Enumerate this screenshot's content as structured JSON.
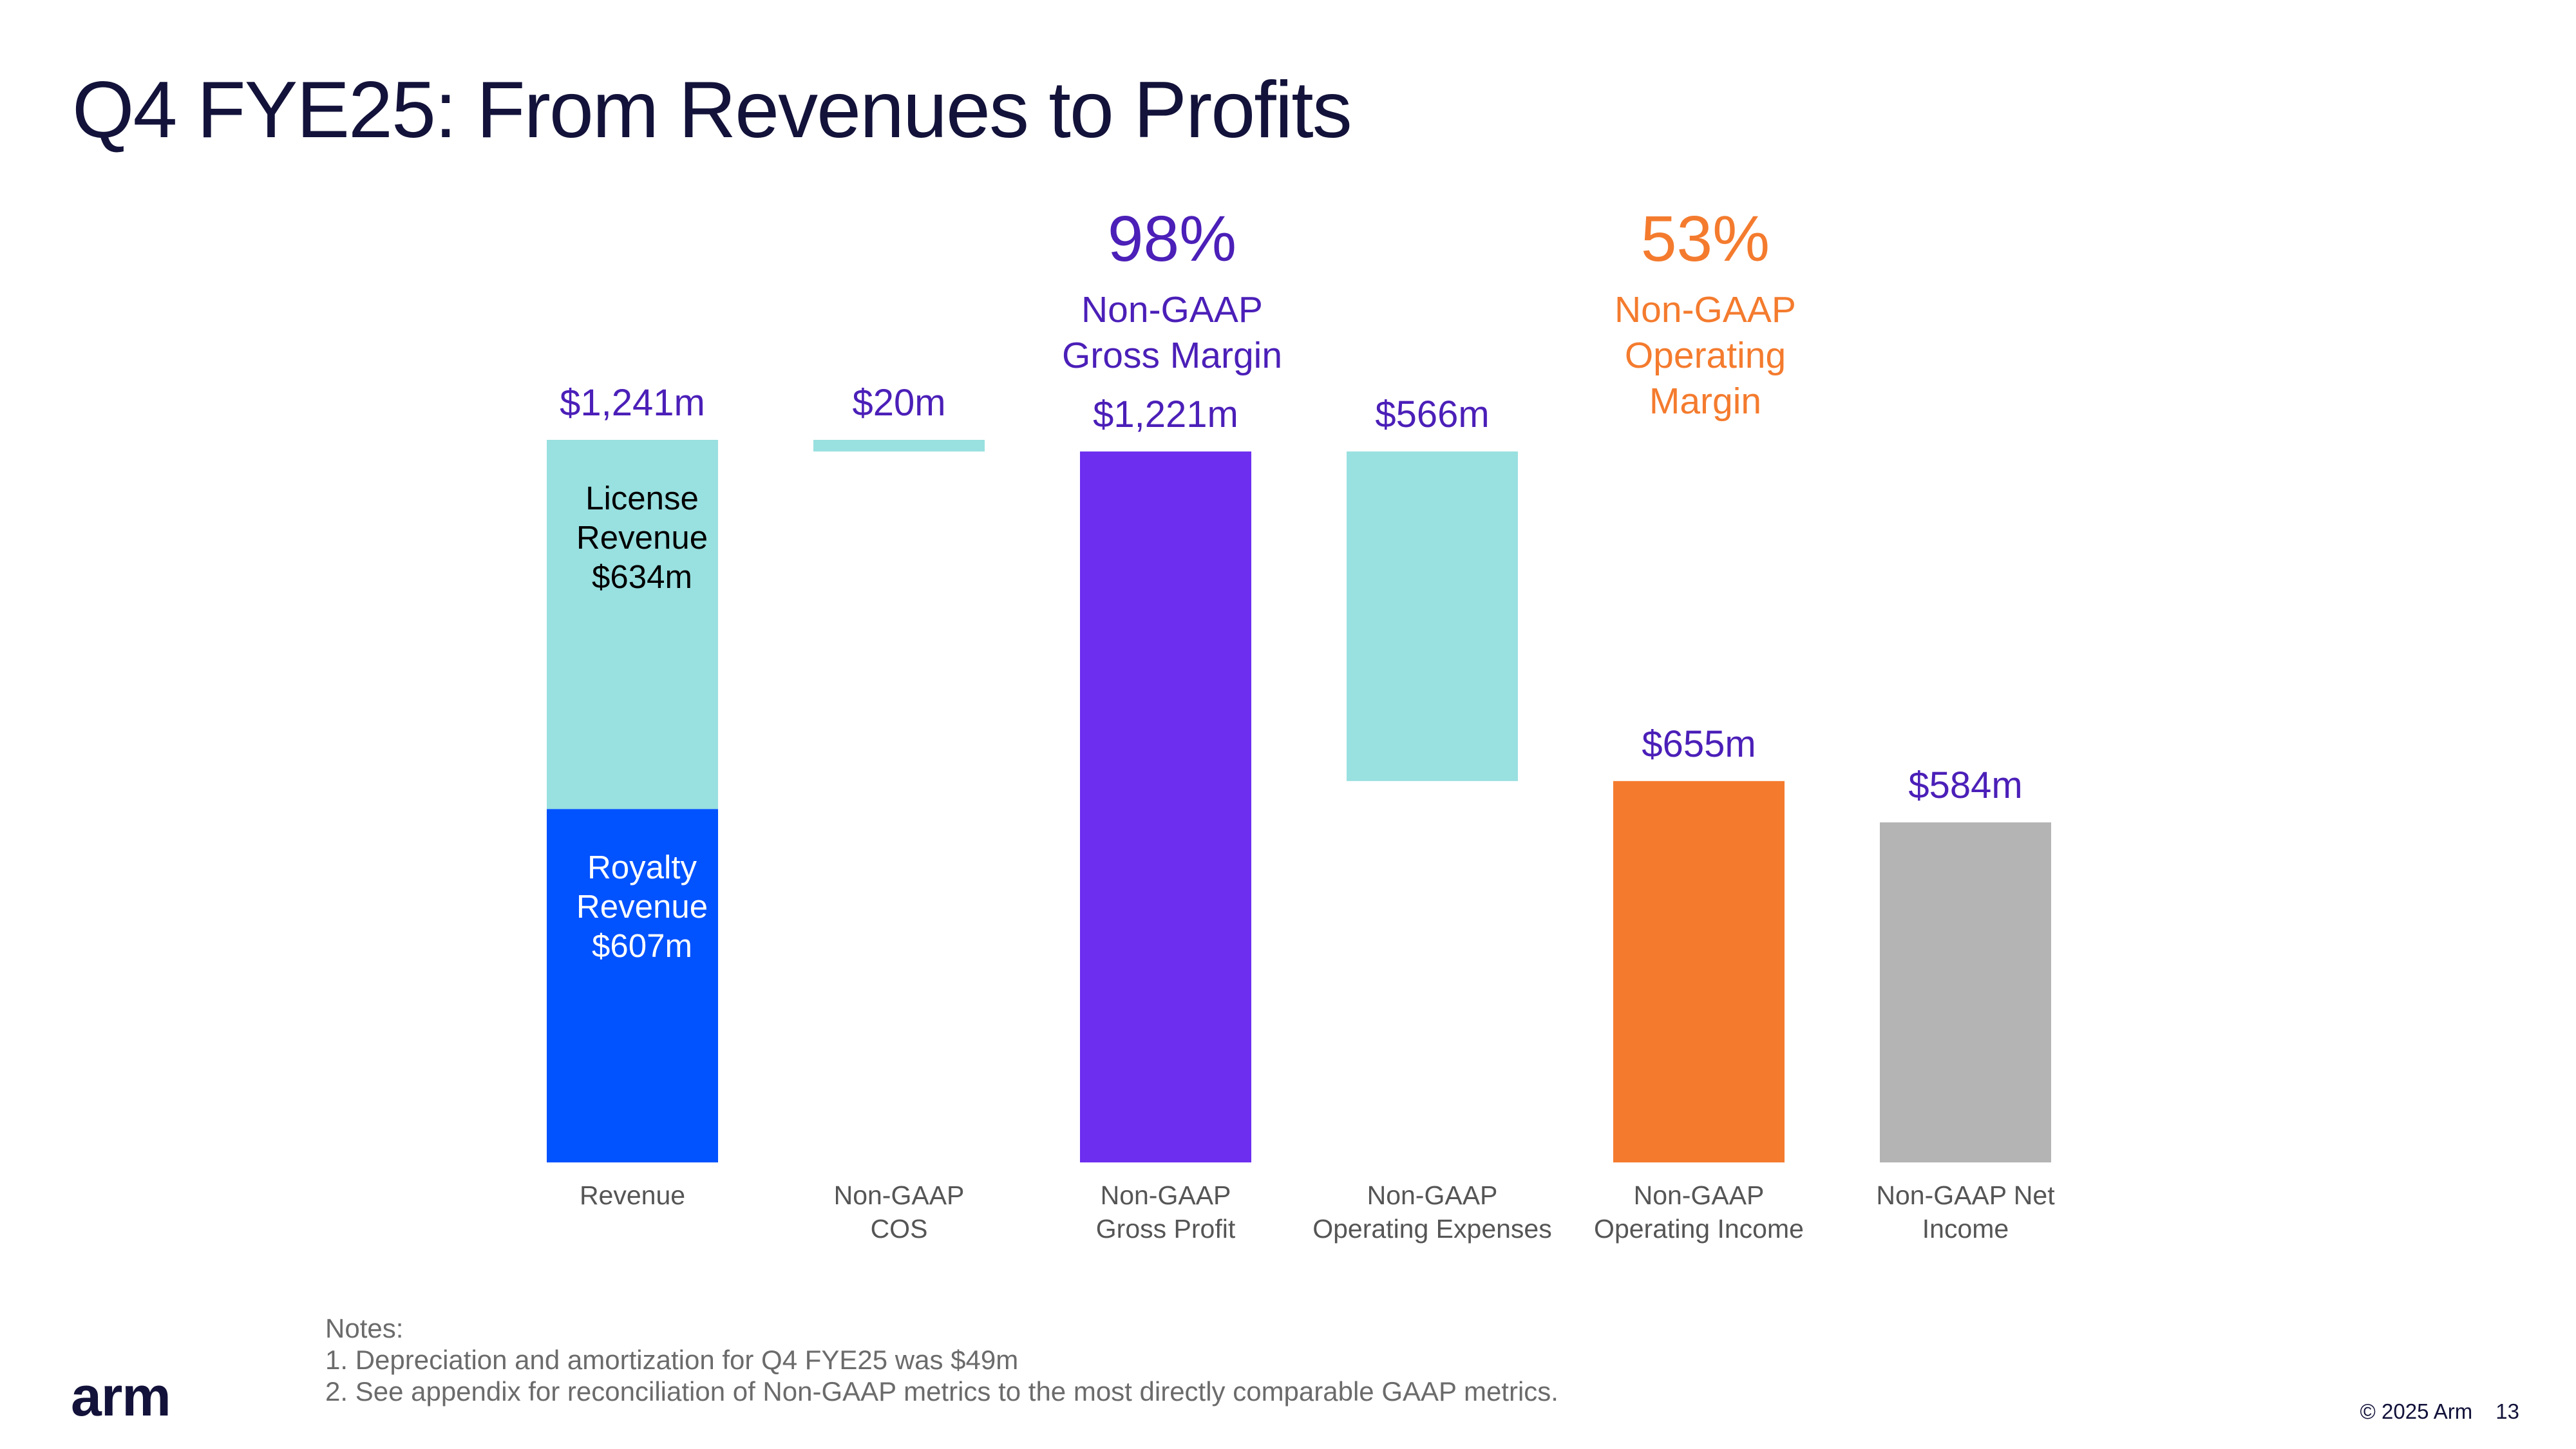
{
  "title": "Q4 FYE25: From Revenues to Profits",
  "chart_data": {
    "type": "bar",
    "subtype": "waterfall",
    "categories": [
      [
        "Revenue"
      ],
      [
        "Non-GAAP",
        "COS"
      ],
      [
        "Non-GAAP",
        "Gross Profit"
      ],
      [
        "Non-GAAP",
        "Operating Expenses"
      ],
      [
        "Non-GAAP",
        "Operating Income"
      ],
      [
        "Non-GAAP Net",
        "Income"
      ]
    ],
    "bars": [
      {
        "base": 0,
        "top": 607,
        "color": "#0152ff",
        "inner_label": [
          "Royalty",
          "Revenue",
          "$607m"
        ],
        "inner_label_color": "#ffffff"
      },
      {
        "base": 607,
        "top": 1241,
        "color": "#99e0e0",
        "inner_label": [
          "License",
          "Revenue",
          "$634m"
        ],
        "inner_label_color": "#000000"
      },
      {
        "base": 1221,
        "top": 1241,
        "color": "#99e0e0"
      },
      {
        "base": 0,
        "top": 1221,
        "color": "#6d2ef0"
      },
      {
        "base": 655,
        "top": 1221,
        "color": "#99e0e0"
      },
      {
        "base": 0,
        "top": 655,
        "color": "#f47b2e"
      },
      {
        "base": 0,
        "top": 584,
        "color": "#b4b4b4"
      }
    ],
    "bar_index": [
      0,
      0,
      1,
      2,
      3,
      4,
      5
    ],
    "value_labels": [
      "$1,241m",
      "$20m",
      "$1,221m",
      "$566m",
      "$655m",
      "$584m"
    ],
    "value_label_tops": [
      1241,
      1241,
      1221,
      1221,
      655,
      584
    ],
    "value_label_color": "#4b1fb8",
    "callouts": [
      {
        "category_index": 2,
        "value": "98%",
        "text": [
          "Non-GAAP",
          "Gross Margin"
        ],
        "color": "#4b1fb8"
      },
      {
        "category_index": 4,
        "value": "53%",
        "text": [
          "Non-GAAP",
          "Operating",
          "Margin"
        ],
        "color": "#f47b2e"
      }
    ],
    "ylim": [
      0,
      1241
    ],
    "grid": false,
    "legend": "none"
  },
  "notes": {
    "heading": "Notes:",
    "items": [
      "1. Depreciation and amortization for Q4 FYE25 was $49m",
      "2. See appendix for reconciliation of Non-GAAP metrics to the most directly comparable GAAP metrics."
    ]
  },
  "logo": "arm",
  "footer": {
    "copyright": "© 2025 Arm",
    "page_number": "13"
  }
}
